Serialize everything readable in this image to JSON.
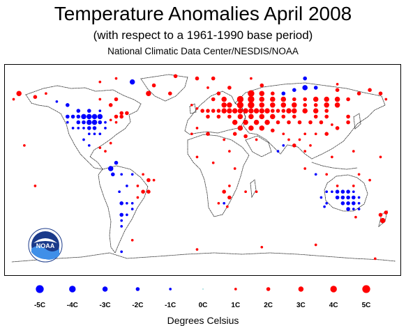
{
  "header": {
    "title": "Temperature Anomalies April 2008",
    "subtitle": "(with respect to a 1961-1990 base period)",
    "credit": "National Climatic Data Center/NESDIS/NOAA"
  },
  "logo": {
    "text": "NOAA"
  },
  "colors": {
    "warm": "#ff0000",
    "cold": "#0000ff",
    "neutral": "#00aaaa",
    "land_outline": "#000000"
  },
  "legend": {
    "title": "Degrees Celsius",
    "items": [
      {
        "label": "-5C",
        "value": -5
      },
      {
        "label": "-4C",
        "value": -4
      },
      {
        "label": "-3C",
        "value": -3
      },
      {
        "label": "-2C",
        "value": -2
      },
      {
        "label": "-1C",
        "value": -1
      },
      {
        "label": "0C",
        "value": 0
      },
      {
        "label": "1C",
        "value": 1
      },
      {
        "label": "2C",
        "value": 2
      },
      {
        "label": "3C",
        "value": 3
      },
      {
        "label": "4C",
        "value": 4
      },
      {
        "label": "5C",
        "value": 5
      }
    ]
  },
  "anomalies": [
    {
      "lon": -95,
      "lat": 45,
      "v": -3
    },
    {
      "lon": -90,
      "lat": 45,
      "v": -3
    },
    {
      "lon": -100,
      "lat": 45,
      "v": -3
    },
    {
      "lon": -105,
      "lat": 45,
      "v": -3
    },
    {
      "lon": -110,
      "lat": 45,
      "v": -2
    },
    {
      "lon": -115,
      "lat": 45,
      "v": -2
    },
    {
      "lon": -95,
      "lat": 40,
      "v": -3
    },
    {
      "lon": -100,
      "lat": 40,
      "v": -3
    },
    {
      "lon": -105,
      "lat": 40,
      "v": -2
    },
    {
      "lon": -110,
      "lat": 40,
      "v": -2
    },
    {
      "lon": -90,
      "lat": 40,
      "v": -2
    },
    {
      "lon": -85,
      "lat": 40,
      "v": -1
    },
    {
      "lon": -95,
      "lat": 35,
      "v": -2
    },
    {
      "lon": -100,
      "lat": 35,
      "v": -2
    },
    {
      "lon": -105,
      "lat": 35,
      "v": -1
    },
    {
      "lon": -110,
      "lat": 35,
      "v": -1
    },
    {
      "lon": -115,
      "lat": 35,
      "v": -1
    },
    {
      "lon": -85,
      "lat": 35,
      "v": -1
    },
    {
      "lon": -95,
      "lat": 30,
      "v": -1
    },
    {
      "lon": -100,
      "lat": 30,
      "v": -1
    },
    {
      "lon": -90,
      "lat": 30,
      "v": -1
    },
    {
      "lon": -120,
      "lat": 40,
      "v": -1
    },
    {
      "lon": -120,
      "lat": 45,
      "v": -2
    },
    {
      "lon": -100,
      "lat": 50,
      "v": -2
    },
    {
      "lon": -110,
      "lat": 50,
      "v": -2
    },
    {
      "lon": -90,
      "lat": 50,
      "v": -1
    },
    {
      "lon": -120,
      "lat": 55,
      "v": -2
    },
    {
      "lon": -130,
      "lat": 58,
      "v": -1
    },
    {
      "lon": -75,
      "lat": 45,
      "v": 2
    },
    {
      "lon": -70,
      "lat": 45,
      "v": 2
    },
    {
      "lon": -80,
      "lat": 42,
      "v": 1
    },
    {
      "lon": -75,
      "lat": 40,
      "v": 1
    },
    {
      "lon": -70,
      "lat": 48,
      "v": 2
    },
    {
      "lon": -65,
      "lat": 48,
      "v": 2
    },
    {
      "lon": -80,
      "lat": 55,
      "v": 2
    },
    {
      "lon": -75,
      "lat": 60,
      "v": 2
    },
    {
      "lon": -90,
      "lat": 60,
      "v": 1
    },
    {
      "lon": -165,
      "lat": 65,
      "v": 3
    },
    {
      "lon": -150,
      "lat": 62,
      "v": 2
    },
    {
      "lon": -140,
      "lat": 65,
      "v": 1
    },
    {
      "lon": -170,
      "lat": 60,
      "v": 1
    },
    {
      "lon": -45,
      "lat": 65,
      "v": 3
    },
    {
      "lon": -40,
      "lat": 72,
      "v": 2
    },
    {
      "lon": -25,
      "lat": 65,
      "v": 2
    },
    {
      "lon": -60,
      "lat": 75,
      "v": -3
    },
    {
      "lon": -75,
      "lat": 78,
      "v": 1
    },
    {
      "lon": -90,
      "lat": 75,
      "v": 1
    },
    {
      "lon": -75,
      "lat": 5,
      "v": -2
    },
    {
      "lon": -80,
      "lat": 0,
      "v": -3
    },
    {
      "lon": -78,
      "lat": -5,
      "v": -2
    },
    {
      "lon": -70,
      "lat": -5,
      "v": -1
    },
    {
      "lon": -60,
      "lat": -5,
      "v": -1
    },
    {
      "lon": -50,
      "lat": -5,
      "v": 1
    },
    {
      "lon": -45,
      "lat": -10,
      "v": 2
    },
    {
      "lon": -40,
      "lat": -10,
      "v": 1
    },
    {
      "lon": -55,
      "lat": -15,
      "v": 1
    },
    {
      "lon": -65,
      "lat": -15,
      "v": -1
    },
    {
      "lon": -50,
      "lat": -20,
      "v": 2
    },
    {
      "lon": -45,
      "lat": -20,
      "v": 2
    },
    {
      "lon": -55,
      "lat": -25,
      "v": 1
    },
    {
      "lon": -60,
      "lat": -30,
      "v": -1
    },
    {
      "lon": -65,
      "lat": -30,
      "v": -1
    },
    {
      "lon": -70,
      "lat": -30,
      "v": -2
    },
    {
      "lon": -60,
      "lat": -35,
      "v": -1
    },
    {
      "lon": -65,
      "lat": -40,
      "v": -1
    },
    {
      "lon": -70,
      "lat": -40,
      "v": -2
    },
    {
      "lon": -70,
      "lat": -45,
      "v": -1
    },
    {
      "lon": -70,
      "lat": -50,
      "v": -1
    },
    {
      "lon": -72,
      "lat": -20,
      "v": -1
    },
    {
      "lon": -85,
      "lat": 15,
      "v": 1
    },
    {
      "lon": -90,
      "lat": 18,
      "v": 1
    },
    {
      "lon": -100,
      "lat": 20,
      "v": -1
    },
    {
      "lon": -105,
      "lat": 25,
      "v": -1
    },
    {
      "lon": -80,
      "lat": 22,
      "v": 1
    },
    {
      "lon": -160,
      "lat": 20,
      "v": 1
    },
    {
      "lon": -150,
      "lat": -15,
      "v": 1
    },
    {
      "lon": 0,
      "lat": 52,
      "v": 1
    },
    {
      "lon": -5,
      "lat": 55,
      "v": 1
    },
    {
      "lon": 5,
      "lat": 50,
      "v": 2
    },
    {
      "lon": 10,
      "lat": 50,
      "v": 2
    },
    {
      "lon": 15,
      "lat": 50,
      "v": 2
    },
    {
      "lon": 20,
      "lat": 50,
      "v": 2
    },
    {
      "lon": 25,
      "lat": 50,
      "v": 3
    },
    {
      "lon": 30,
      "lat": 50,
      "v": 3
    },
    {
      "lon": 35,
      "lat": 50,
      "v": 3
    },
    {
      "lon": 40,
      "lat": 50,
      "v": 3
    },
    {
      "lon": 45,
      "lat": 50,
      "v": 3
    },
    {
      "lon": 50,
      "lat": 50,
      "v": 3
    },
    {
      "lon": 55,
      "lat": 50,
      "v": 3
    },
    {
      "lon": 60,
      "lat": 50,
      "v": 3
    },
    {
      "lon": 65,
      "lat": 50,
      "v": 3
    },
    {
      "lon": 70,
      "lat": 50,
      "v": 2
    },
    {
      "lon": 75,
      "lat": 50,
      "v": 2
    },
    {
      "lon": 80,
      "lat": 50,
      "v": 2
    },
    {
      "lon": 85,
      "lat": 50,
      "v": 3
    },
    {
      "lon": 90,
      "lat": 50,
      "v": 3
    },
    {
      "lon": 100,
      "lat": 50,
      "v": 3
    },
    {
      "lon": 110,
      "lat": 50,
      "v": 3
    },
    {
      "lon": 120,
      "lat": 50,
      "v": 2
    },
    {
      "lon": 10,
      "lat": 45,
      "v": 2
    },
    {
      "lon": 20,
      "lat": 45,
      "v": 2
    },
    {
      "lon": 30,
      "lat": 45,
      "v": 2
    },
    {
      "lon": 40,
      "lat": 45,
      "v": 3
    },
    {
      "lon": 50,
      "lat": 45,
      "v": 3
    },
    {
      "lon": 60,
      "lat": 45,
      "v": 3
    },
    {
      "lon": 70,
      "lat": 45,
      "v": 3
    },
    {
      "lon": 80,
      "lat": 45,
      "v": 2
    },
    {
      "lon": 90,
      "lat": 45,
      "v": 2
    },
    {
      "lon": 110,
      "lat": 45,
      "v": 2
    },
    {
      "lon": 120,
      "lat": 45,
      "v": 2
    },
    {
      "lon": 25,
      "lat": 55,
      "v": 3
    },
    {
      "lon": 30,
      "lat": 55,
      "v": 3
    },
    {
      "lon": 40,
      "lat": 55,
      "v": 4
    },
    {
      "lon": 50,
      "lat": 55,
      "v": 4
    },
    {
      "lon": 60,
      "lat": 55,
      "v": 3
    },
    {
      "lon": 70,
      "lat": 55,
      "v": 3
    },
    {
      "lon": 80,
      "lat": 55,
      "v": 3
    },
    {
      "lon": 90,
      "lat": 55,
      "v": 3
    },
    {
      "lon": 100,
      "lat": 55,
      "v": 2
    },
    {
      "lon": 110,
      "lat": 55,
      "v": 2
    },
    {
      "lon": 120,
      "lat": 55,
      "v": 3
    },
    {
      "lon": 130,
      "lat": 55,
      "v": 3
    },
    {
      "lon": 40,
      "lat": 60,
      "v": 4
    },
    {
      "lon": 50,
      "lat": 60,
      "v": 4
    },
    {
      "lon": 60,
      "lat": 60,
      "v": 3
    },
    {
      "lon": 70,
      "lat": 60,
      "v": 3
    },
    {
      "lon": 80,
      "lat": 60,
      "v": 3
    },
    {
      "lon": 90,
      "lat": 60,
      "v": 2
    },
    {
      "lon": 100,
      "lat": 60,
      "v": 2
    },
    {
      "lon": 110,
      "lat": 60,
      "v": 3
    },
    {
      "lon": 120,
      "lat": 60,
      "v": 3
    },
    {
      "lon": 130,
      "lat": 60,
      "v": 3
    },
    {
      "lon": 140,
      "lat": 60,
      "v": 2
    },
    {
      "lon": 50,
      "lat": 65,
      "v": 4
    },
    {
      "lon": 60,
      "lat": 65,
      "v": 3
    },
    {
      "lon": 70,
      "lat": 65,
      "v": 2
    },
    {
      "lon": 80,
      "lat": 65,
      "v": -2
    },
    {
      "lon": 90,
      "lat": 68,
      "v": -2
    },
    {
      "lon": 100,
      "lat": 70,
      "v": -3
    },
    {
      "lon": 110,
      "lat": 70,
      "v": -2
    },
    {
      "lon": 130,
      "lat": 68,
      "v": 2
    },
    {
      "lon": 150,
      "lat": 65,
      "v": 2
    },
    {
      "lon": 160,
      "lat": 68,
      "v": 2
    },
    {
      "lon": 170,
      "lat": 65,
      "v": 2
    },
    {
      "lon": 175,
      "lat": 60,
      "v": 1
    },
    {
      "lon": 20,
      "lat": 65,
      "v": 2
    },
    {
      "lon": 15,
      "lat": 60,
      "v": 2
    },
    {
      "lon": 25,
      "lat": 60,
      "v": 3
    },
    {
      "lon": 10,
      "lat": 70,
      "v": 1
    },
    {
      "lon": 30,
      "lat": 70,
      "v": 2
    },
    {
      "lon": 60,
      "lat": 72,
      "v": 2
    },
    {
      "lon": 35,
      "lat": 40,
      "v": 3
    },
    {
      "lon": 45,
      "lat": 40,
      "v": 3
    },
    {
      "lon": 55,
      "lat": 40,
      "v": 3
    },
    {
      "lon": 65,
      "lat": 40,
      "v": 3
    },
    {
      "lon": 75,
      "lat": 40,
      "v": 2
    },
    {
      "lon": 85,
      "lat": 40,
      "v": 2
    },
    {
      "lon": 95,
      "lat": 40,
      "v": 2
    },
    {
      "lon": 105,
      "lat": 40,
      "v": 2
    },
    {
      "lon": 115,
      "lat": 40,
      "v": 2
    },
    {
      "lon": 40,
      "lat": 35,
      "v": 3
    },
    {
      "lon": 50,
      "lat": 35,
      "v": 3
    },
    {
      "lon": 60,
      "lat": 35,
      "v": 3
    },
    {
      "lon": 70,
      "lat": 33,
      "v": 2
    },
    {
      "lon": 80,
      "lat": 30,
      "v": 1
    },
    {
      "lon": 100,
      "lat": 30,
      "v": 1
    },
    {
      "lon": 110,
      "lat": 30,
      "v": 1
    },
    {
      "lon": 120,
      "lat": 30,
      "v": 2
    },
    {
      "lon": 35,
      "lat": 30,
      "v": 2
    },
    {
      "lon": 45,
      "lat": 28,
      "v": 2
    },
    {
      "lon": 55,
      "lat": 25,
      "v": 1
    },
    {
      "lon": 80,
      "lat": 20,
      "v": -1
    },
    {
      "lon": 75,
      "lat": 15,
      "v": -1
    },
    {
      "lon": 100,
      "lat": 15,
      "v": 1
    },
    {
      "lon": 105,
      "lat": 20,
      "v": 1
    },
    {
      "lon": 130,
      "lat": 35,
      "v": 2
    },
    {
      "lon": 140,
      "lat": 40,
      "v": 2
    },
    {
      "lon": 140,
      "lat": 45,
      "v": 2
    },
    {
      "lon": 125,
      "lat": 38,
      "v": 1
    },
    {
      "lon": 0,
      "lat": 35,
      "v": 1
    },
    {
      "lon": -5,
      "lat": 30,
      "v": 1
    },
    {
      "lon": 10,
      "lat": 30,
      "v": 2
    },
    {
      "lon": 25,
      "lat": 25,
      "v": 1
    },
    {
      "lon": 30,
      "lat": 15,
      "v": 1
    },
    {
      "lon": 0,
      "lat": 10,
      "v": 1
    },
    {
      "lon": 15,
      "lat": 5,
      "v": 1
    },
    {
      "lon": 35,
      "lat": 0,
      "v": 1
    },
    {
      "lon": 30,
      "lat": -15,
      "v": 1
    },
    {
      "lon": 25,
      "lat": -20,
      "v": 2
    },
    {
      "lon": 30,
      "lat": -25,
      "v": 2
    },
    {
      "lon": 20,
      "lat": -30,
      "v": 1
    },
    {
      "lon": 25,
      "lat": -30,
      "v": -1
    },
    {
      "lon": 28,
      "lat": -33,
      "v": 1
    },
    {
      "lon": 45,
      "lat": -20,
      "v": 1
    },
    {
      "lon": 55,
      "lat": -20,
      "v": 1
    },
    {
      "lon": 115,
      "lat": -25,
      "v": -1
    },
    {
      "lon": 120,
      "lat": -20,
      "v": -1
    },
    {
      "lon": 125,
      "lat": -20,
      "v": -1
    },
    {
      "lon": 130,
      "lat": -20,
      "v": -2
    },
    {
      "lon": 135,
      "lat": -20,
      "v": -2
    },
    {
      "lon": 140,
      "lat": -20,
      "v": -2
    },
    {
      "lon": 145,
      "lat": -20,
      "v": -1
    },
    {
      "lon": 130,
      "lat": -25,
      "v": -2
    },
    {
      "lon": 135,
      "lat": -25,
      "v": -2
    },
    {
      "lon": 140,
      "lat": -25,
      "v": -2
    },
    {
      "lon": 145,
      "lat": -25,
      "v": -2
    },
    {
      "lon": 150,
      "lat": -25,
      "v": -1
    },
    {
      "lon": 120,
      "lat": -30,
      "v": -1
    },
    {
      "lon": 135,
      "lat": -30,
      "v": -2
    },
    {
      "lon": 140,
      "lat": -30,
      "v": -2
    },
    {
      "lon": 145,
      "lat": -30,
      "v": -2
    },
    {
      "lon": 150,
      "lat": -30,
      "v": -1
    },
    {
      "lon": 140,
      "lat": -35,
      "v": -2
    },
    {
      "lon": 145,
      "lat": -35,
      "v": -1
    },
    {
      "lon": 150,
      "lat": -35,
      "v": -1
    },
    {
      "lon": 118,
      "lat": -33,
      "v": -1
    },
    {
      "lon": 130,
      "lat": -15,
      "v": 1
    },
    {
      "lon": 145,
      "lat": -15,
      "v": 1
    },
    {
      "lon": 147,
      "lat": -42,
      "v": 1
    },
    {
      "lon": 170,
      "lat": -40,
      "v": 2
    },
    {
      "lon": 175,
      "lat": -38,
      "v": 2
    },
    {
      "lon": 172,
      "lat": -45,
      "v": 3
    },
    {
      "lon": 150,
      "lat": -5,
      "v": 1
    },
    {
      "lon": 160,
      "lat": -10,
      "v": 1
    },
    {
      "lon": 120,
      "lat": -5,
      "v": 1
    },
    {
      "lon": 100,
      "lat": 0,
      "v": 1
    },
    {
      "lon": 110,
      "lat": -5,
      "v": -1
    },
    {
      "lon": 125,
      "lat": 10,
      "v": 1
    },
    {
      "lon": 145,
      "lat": 15,
      "v": 1
    },
    {
      "lon": 170,
      "lat": 10,
      "v": 1
    },
    {
      "lon": 90,
      "lat": 20,
      "v": 2
    },
    {
      "lon": 95,
      "lat": 25,
      "v": 1
    },
    {
      "lon": 85,
      "lat": 25,
      "v": 1
    },
    {
      "lon": -60,
      "lat": -62,
      "v": 1
    },
    {
      "lon": 0,
      "lat": -70,
      "v": 1
    },
    {
      "lon": 60,
      "lat": -68,
      "v": 1
    },
    {
      "lon": 110,
      "lat": -66,
      "v": 1
    },
    {
      "lon": 165,
      "lat": -78,
      "v": 1
    },
    {
      "lon": -70,
      "lat": -72,
      "v": -1
    },
    {
      "lon": 0,
      "lat": 78,
      "v": 2
    },
    {
      "lon": 15,
      "lat": 78,
      "v": 2
    },
    {
      "lon": 50,
      "lat": 78,
      "v": 1
    },
    {
      "lon": 100,
      "lat": 78,
      "v": -2
    },
    {
      "lon": 130,
      "lat": 73,
      "v": 1
    },
    {
      "lon": -20,
      "lat": 80,
      "v": 2
    }
  ]
}
